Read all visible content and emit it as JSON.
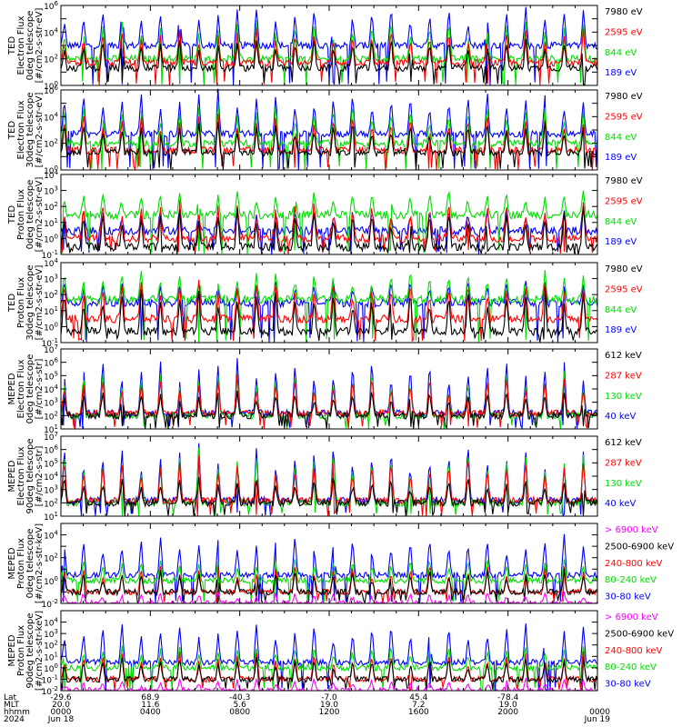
{
  "chart_data": [
    {
      "type": "line",
      "panel": 1,
      "ylabel": [
        "TED",
        "Electron Flux",
        "0deg telescope",
        "[#/cm2-s-str-eV]"
      ],
      "ylim": [
        1,
        1000000
      ],
      "yscale": "log",
      "ytick_labels": [
        "10^0",
        "10^2",
        "10^4",
        "10^6"
      ],
      "series": [
        {
          "name": "7980 eV",
          "color": "#000000",
          "baseline": 20,
          "peak": 5000
        },
        {
          "name": "2595 eV",
          "color": "#ff0000",
          "baseline": 50,
          "peak": 20000
        },
        {
          "name": "844 eV",
          "color": "#00dd00",
          "baseline": 100,
          "peak": 100000
        },
        {
          "name": "189 eV",
          "color": "#0000ff",
          "baseline": 1000,
          "peak": 1000000
        }
      ]
    },
    {
      "type": "line",
      "panel": 2,
      "ylabel": [
        "TED",
        "Electron Flux",
        "30deg telescope",
        "[#/cm2-s-str-eV]"
      ],
      "ylim": [
        1,
        1000000
      ],
      "yscale": "log",
      "ytick_labels": [
        "10^0",
        "10^2",
        "10^4",
        "10^6"
      ],
      "series": [
        {
          "name": "7980 eV",
          "color": "#000000",
          "baseline": 20,
          "peak": 5000
        },
        {
          "name": "2595 eV",
          "color": "#ff0000",
          "baseline": 30,
          "peak": 20000
        },
        {
          "name": "844 eV",
          "color": "#00dd00",
          "baseline": 100,
          "peak": 100000
        },
        {
          "name": "189 eV",
          "color": "#0000ff",
          "baseline": 500,
          "peak": 1000000
        }
      ]
    },
    {
      "type": "line",
      "panel": 3,
      "ylabel": [
        "TED",
        "Proton Flux",
        "0deg telescope",
        "[#/cm2-s-str-eV]"
      ],
      "ylim": [
        0.1,
        10000
      ],
      "yscale": "log",
      "ytick_labels": [
        "10^-1",
        "10^0",
        "10^1",
        "10^2",
        "10^3",
        "10^4"
      ],
      "series": [
        {
          "name": "7980 eV",
          "color": "#000000",
          "baseline": 0.3,
          "peak": 100
        },
        {
          "name": "2595 eV",
          "color": "#ff0000",
          "baseline": 1,
          "peak": 300
        },
        {
          "name": "844 eV",
          "color": "#00dd00",
          "baseline": 30,
          "peak": 1000
        },
        {
          "name": "189 eV",
          "color": "#0000ff",
          "baseline": 3,
          "peak": 100
        }
      ]
    },
    {
      "type": "line",
      "panel": 4,
      "ylabel": [
        "TED",
        "Proton Flux",
        "30deg telescope",
        "[#/cm2-s-str-eV]"
      ],
      "ylim": [
        0.1,
        10000
      ],
      "yscale": "log",
      "ytick_labels": [
        "10^-1",
        "10^0",
        "10^1",
        "10^2",
        "10^3",
        "10^4"
      ],
      "series": [
        {
          "name": "7980 eV",
          "color": "#000000",
          "baseline": 0.5,
          "peak": 300
        },
        {
          "name": "2595 eV",
          "color": "#ff0000",
          "baseline": 3,
          "peak": 1000
        },
        {
          "name": "844 eV",
          "color": "#00dd00",
          "baseline": 50,
          "peak": 3000
        },
        {
          "name": "189 eV",
          "color": "#0000ff",
          "baseline": 30,
          "peak": 1000
        }
      ]
    },
    {
      "type": "line",
      "panel": 5,
      "ylabel": [
        "MEPED",
        "Electron Flux",
        "0deg telescope",
        "[#/cm2-s-str]"
      ],
      "ylim": [
        10,
        10000000
      ],
      "yscale": "log",
      "ytick_labels": [
        "10^1",
        "10^2",
        "10^3",
        "10^4",
        "10^5",
        "10^6",
        "10^7"
      ],
      "series": [
        {
          "name": "612 keV",
          "color": "#000000",
          "baseline": 100,
          "peak": 10000
        },
        {
          "name": "287 keV",
          "color": "#ff0000",
          "baseline": 150,
          "peak": 100000
        },
        {
          "name": "130 keV",
          "color": "#00dd00",
          "baseline": 100,
          "peak": 300000
        },
        {
          "name": "40 keV",
          "color": "#0000ff",
          "baseline": 150,
          "peak": 3000000
        }
      ]
    },
    {
      "type": "line",
      "panel": 6,
      "ylabel": [
        "MEPED",
        "Electron Flux",
        "90deg telescope",
        "[#/cm2-s-str]"
      ],
      "ylim": [
        10,
        10000000
      ],
      "yscale": "log",
      "ytick_labels": [
        "10^1",
        "10^2",
        "10^3",
        "10^4",
        "10^5",
        "10^6",
        "10^7"
      ],
      "series": [
        {
          "name": "612 keV",
          "color": "#000000",
          "baseline": 100,
          "peak": 10000
        },
        {
          "name": "287 keV",
          "color": "#ff0000",
          "baseline": 150,
          "peak": 300000
        },
        {
          "name": "130 keV",
          "color": "#00dd00",
          "baseline": 100,
          "peak": 1000000
        },
        {
          "name": "40 keV",
          "color": "#0000ff",
          "baseline": 150,
          "peak": 3000000
        }
      ]
    },
    {
      "type": "line",
      "panel": 7,
      "ylabel": [
        "MEPED",
        "Proton Flux",
        "0deg telescope",
        "[#/cm2-s-str-keV]"
      ],
      "ylim": [
        0.01,
        100000
      ],
      "yscale": "log",
      "ytick_labels": [
        "10^-2",
        "10^0",
        "10^2",
        "10^4"
      ],
      "series": [
        {
          "name": "> 6900 keV",
          "color": "#ff00ff",
          "baseline": 0.01,
          "peak": 0.1
        },
        {
          "name": "2500-6900 keV",
          "color": "#000000",
          "baseline": 0.1,
          "peak": 10
        },
        {
          "name": "240-800 keV",
          "color": "#ff0000",
          "baseline": 0.1,
          "peak": 30
        },
        {
          "name": "80-240 keV",
          "color": "#00dd00",
          "baseline": 1,
          "peak": 100
        },
        {
          "name": "30-80 keV",
          "color": "#0000ff",
          "baseline": 3,
          "peak": 10000
        }
      ]
    },
    {
      "type": "line",
      "panel": 8,
      "ylabel": [
        "MEPED",
        "Proton Flux",
        "90deg telescope",
        "[#/cm2-s-str-keV]"
      ],
      "ylim": [
        0.01,
        100000
      ],
      "yscale": "log",
      "ytick_labels": [
        "10^-2",
        "10^-1",
        "10^0",
        "10^1",
        "10^2",
        "10^3",
        "10^4"
      ],
      "series": [
        {
          "name": "> 6900 keV",
          "color": "#ff00ff",
          "baseline": 0.01,
          "peak": 0.1
        },
        {
          "name": "2500-6900 keV",
          "color": "#000000",
          "baseline": 0.1,
          "peak": 10
        },
        {
          "name": "240-800 keV",
          "color": "#ff0000",
          "baseline": 0.1,
          "peak": 30
        },
        {
          "name": "80-240 keV",
          "color": "#00dd00",
          "baseline": 1,
          "peak": 100
        },
        {
          "name": "30-80 keV",
          "color": "#0000ff",
          "baseline": 3,
          "peak": 10000
        }
      ]
    }
  ],
  "x_axis": {
    "row_labels": [
      "Lat",
      "MLT",
      "hhmm",
      "2024"
    ],
    "ticks": [
      {
        "lat": "-29.6",
        "mlt": "20.0",
        "hhmm": "0000",
        "date": "Jun 18"
      },
      {
        "lat": "68.9",
        "mlt": "11.6",
        "hhmm": "0400",
        "date": ""
      },
      {
        "lat": "-40.3",
        "mlt": "5.6",
        "hhmm": "0800",
        "date": ""
      },
      {
        "lat": "-7.0",
        "mlt": "19.0",
        "hhmm": "1200",
        "date": ""
      },
      {
        "lat": "45.4",
        "mlt": "7.2",
        "hhmm": "1600",
        "date": ""
      },
      {
        "lat": "-78.4",
        "mlt": "19.0",
        "hhmm": "2000",
        "date": ""
      },
      {
        "lat": "",
        "mlt": "",
        "hhmm": "0000",
        "date": "Jun 19"
      }
    ],
    "range_hours": [
      0,
      24
    ]
  }
}
